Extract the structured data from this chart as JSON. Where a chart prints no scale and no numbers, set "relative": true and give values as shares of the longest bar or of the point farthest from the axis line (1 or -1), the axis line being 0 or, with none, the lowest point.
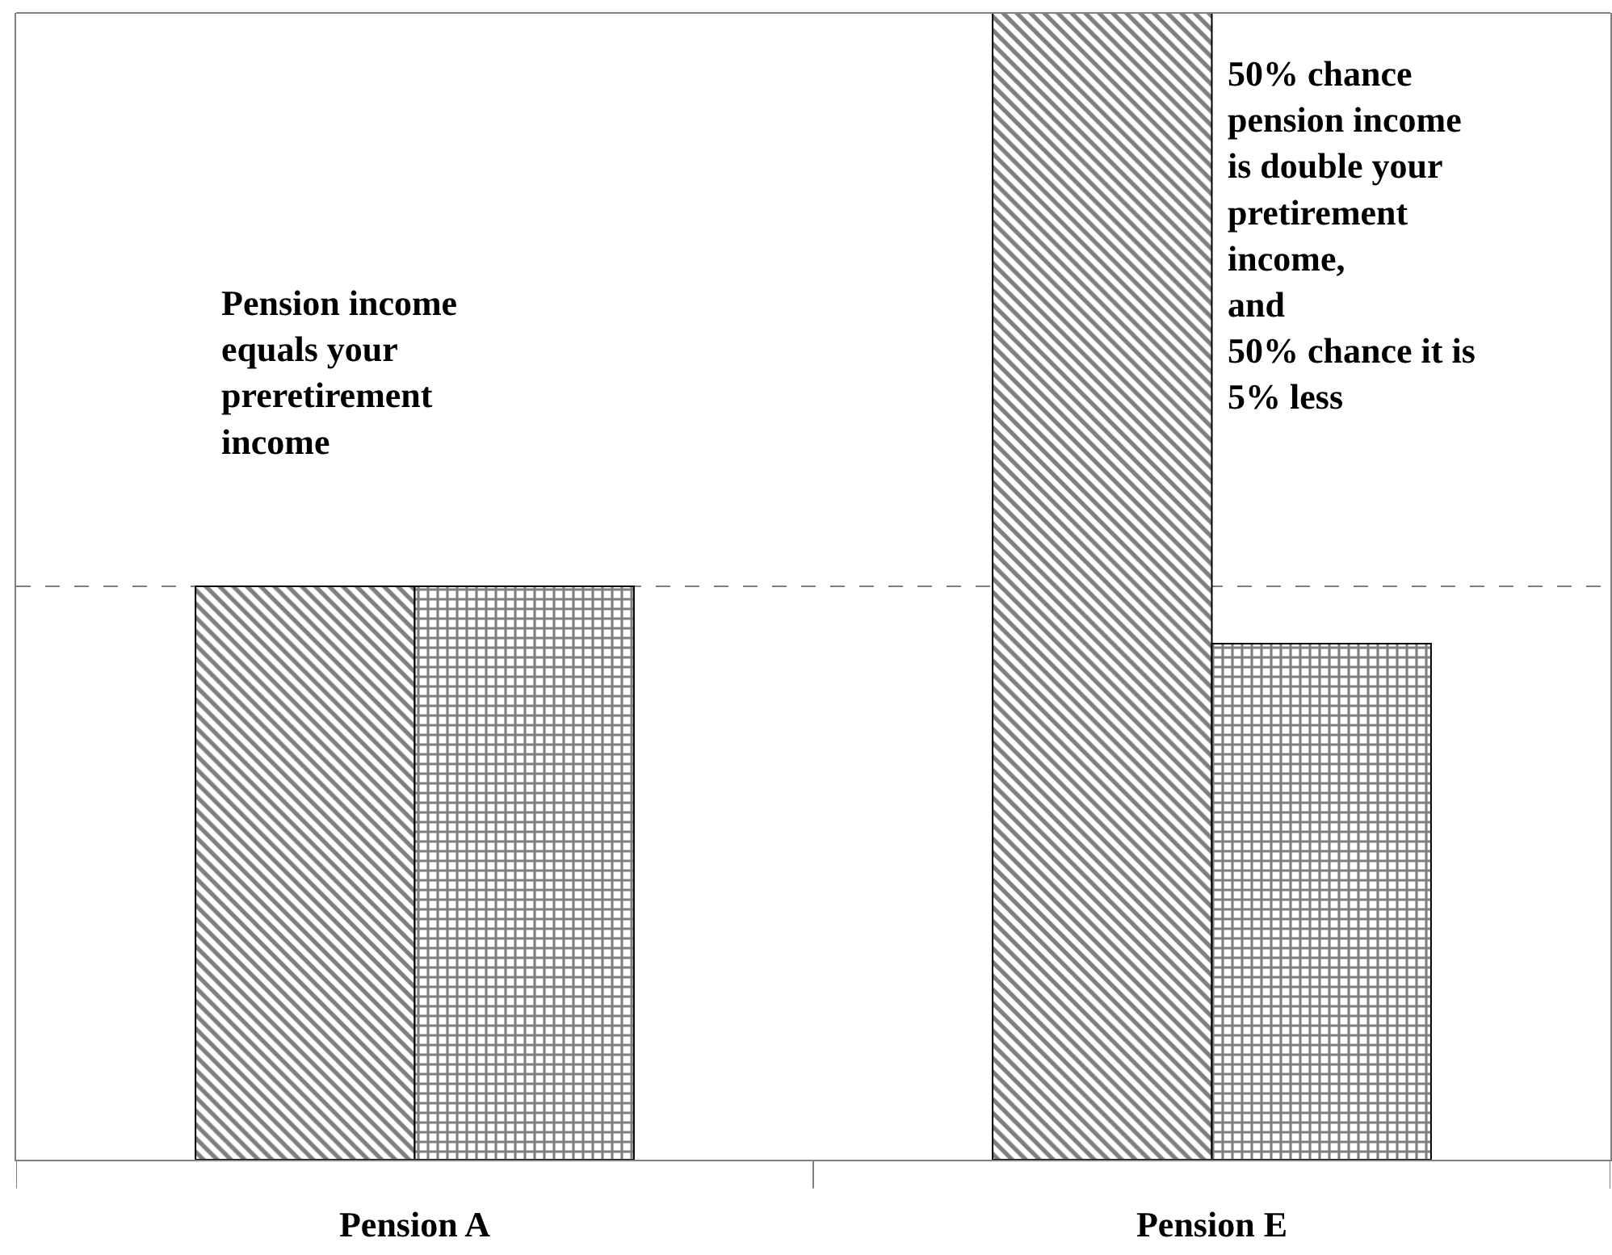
{
  "chart_data": {
    "type": "bar",
    "relative": true,
    "categories": [
      "Pension A",
      "Pension E"
    ],
    "series": [
      {
        "color": "#000000",
        "values": [
          0.5,
          1.0
        ]
      },
      {
        "color": "#000000",
        "values": [
          0.5,
          0.45
        ]
      }
    ],
    "ref_lines": [
      {
        "axis": "y",
        "value": 0.5,
        "color": "#808080",
        "line_style": "dashed"
      }
    ],
    "annotations": [
      "Pension income\nequals your\npreretirement\nincome",
      "50% chance\npension income\nis double your\npretirement\nincome,\nand\n50% chance it is\n5% less"
    ]
  }
}
